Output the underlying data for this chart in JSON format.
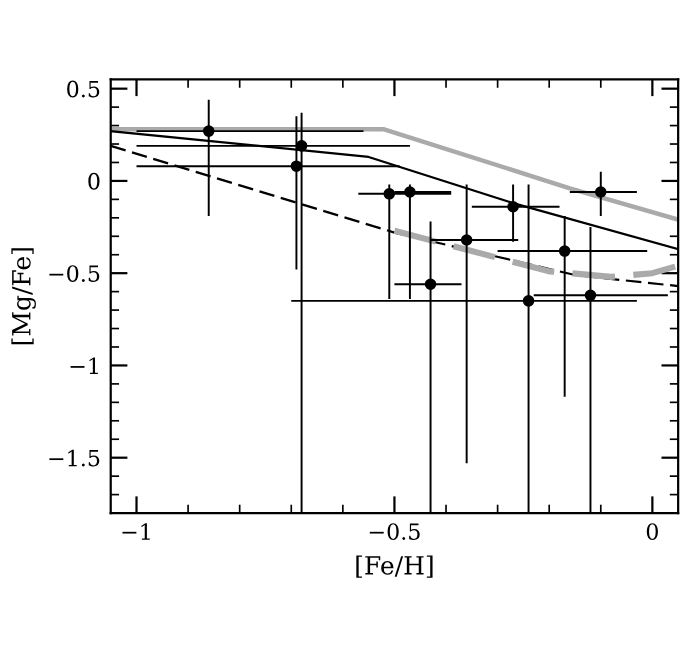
{
  "chart_data": {
    "type": "scatter",
    "xlabel": "[Fe/H]",
    "ylabel": "[Mg/Fe]",
    "xlim": [
      -1.05,
      0.05
    ],
    "ylim": [
      -1.8,
      0.55
    ],
    "xticks": [
      {
        "value": -1,
        "label": "−1"
      },
      {
        "value": -0.5,
        "label": "−0.5"
      },
      0
    ],
    "yticks": [
      {
        "value": -1.5,
        "label": "−1.5"
      },
      {
        "value": -1,
        "label": "−1"
      },
      {
        "value": -0.5,
        "label": "−0.5"
      },
      0,
      0.5
    ],
    "grid": false,
    "legend": false,
    "marker": "circle",
    "series": [
      {
        "color": "#000000",
        "x": [
          -0.86,
          -0.68,
          -0.69,
          -0.51,
          -0.47,
          -0.43,
          -0.36,
          -0.27,
          -0.24,
          -0.17,
          -0.12,
          -0.1
        ],
        "values": [
          0.27,
          0.19,
          0.08,
          -0.07,
          -0.06,
          -0.56,
          -0.32,
          -0.14,
          -0.65,
          -0.38,
          -0.62,
          -0.06
        ],
        "errors": [
          [
            -0.19,
            0.44
          ],
          [
            -1.8,
            0.37
          ],
          [
            -0.48,
            0.35
          ],
          [
            -0.64,
            -0.02
          ],
          [
            -0.64,
            -0.02
          ],
          [
            -1.8,
            -0.22
          ],
          [
            -1.53,
            -0.02
          ],
          [
            -0.33,
            -0.02
          ],
          [
            -1.8,
            -0.02
          ],
          [
            -1.17,
            -0.19
          ],
          [
            -1.8,
            -0.25
          ],
          [
            -0.19,
            0.05
          ]
        ],
        "xerrors": [
          [
            -1.0,
            -0.56
          ],
          [
            -1.0,
            -0.47
          ],
          [
            -1.0,
            -0.49
          ],
          [
            -0.57,
            -0.39
          ],
          [
            -0.5,
            -0.39
          ],
          [
            -0.5,
            -0.37
          ],
          [
            -0.43,
            -0.26
          ],
          [
            -0.35,
            -0.18
          ],
          [
            -0.7,
            -0.03
          ],
          [
            -0.3,
            -0.01
          ],
          [
            -0.23,
            0.03
          ],
          [
            -0.16,
            -0.03
          ]
        ]
      },
      {
        "type": "line",
        "color": "#aaaaaa",
        "line_style": "solid",
        "marker": "none",
        "x": [
          -1.05,
          -0.52,
          -0.16,
          0.05
        ],
        "values": [
          0.28,
          0.28,
          -0.04,
          -0.21
        ]
      },
      {
        "type": "line",
        "color": "#000000",
        "line_style": "solid",
        "marker": "none",
        "x": [
          -1.05,
          -0.55,
          -0.27,
          0.05
        ],
        "values": [
          0.27,
          0.13,
          -0.12,
          -0.37
        ]
      },
      {
        "type": "line",
        "color": "#000000",
        "line_style": "dashed",
        "marker": "none",
        "x": [
          -1.05,
          -0.5,
          -0.15,
          0.05
        ],
        "values": [
          0.19,
          -0.28,
          -0.51,
          -0.57
        ]
      },
      {
        "type": "line",
        "color": "#aaaaaa",
        "line_style": "dashed",
        "marker": "none",
        "x": [
          -0.5,
          -0.2,
          -0.08,
          0.0,
          0.05
        ],
        "values": [
          -0.27,
          -0.49,
          -0.52,
          -0.5,
          -0.46
        ]
      }
    ]
  }
}
